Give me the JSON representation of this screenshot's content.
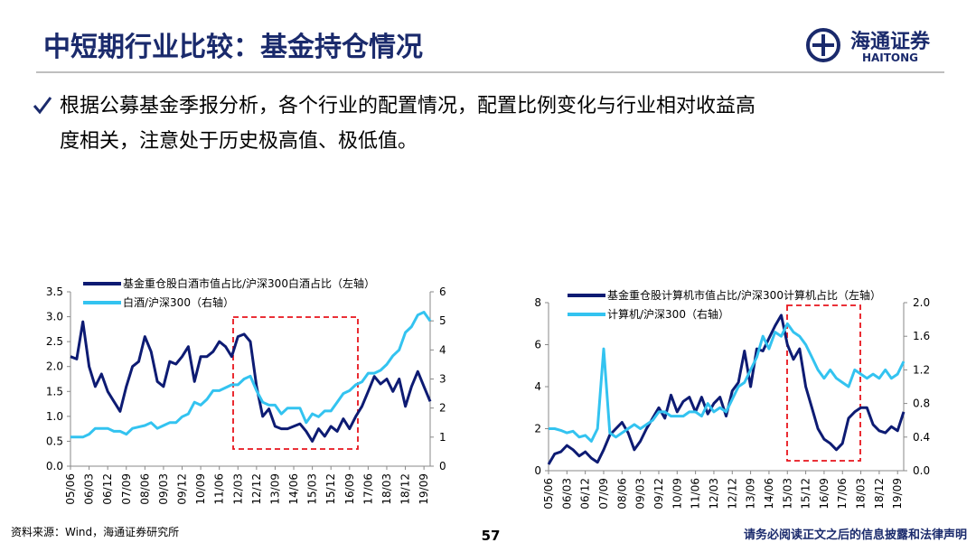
{
  "header": {
    "title": "中短期行业比较：基金持仓情况",
    "logo_cn": "海通证券",
    "logo_en": "HAITONG"
  },
  "bullet": [
    "根据公募基金季报分析，各个行业的配置情况，配置比例变化与行业相对收益高",
    "度相关，注意处于历史极高值、极低值。"
  ],
  "footer": {
    "source": "资料来源：Wind，海通证券研究所",
    "page": "57",
    "disclaimer": "请务必阅读正文之后的信息披露和法律声明"
  },
  "chart_data": [
    {
      "type": "line",
      "categories": [
        "05/06",
        null,
        null,
        "06/03",
        null,
        null,
        "06/12",
        null,
        null,
        "07/09",
        null,
        null,
        "08/06",
        null,
        null,
        "09/03",
        null,
        null,
        "09/12",
        null,
        null,
        "10/09",
        null,
        null,
        "11/06",
        null,
        null,
        "12/03",
        null,
        null,
        "12/12",
        null,
        null,
        "13/09",
        null,
        null,
        "14/06",
        null,
        null,
        "15/03",
        null,
        null,
        "15/12",
        null,
        null,
        "16/09",
        null,
        null,
        "17/06",
        null,
        null,
        "18/03",
        null,
        null,
        "18/12",
        null,
        null,
        "19/09",
        null
      ],
      "ylim": [
        0,
        3.5
      ],
      "yticks": [
        {
          "value": 0,
          "label": "0.0"
        },
        0.5,
        {
          "value": 1,
          "label": "1.0"
        },
        1.5,
        {
          "value": 2,
          "label": "2.0"
        },
        2.5,
        {
          "value": 3,
          "label": "3.0"
        },
        3.5
      ],
      "y2lim": [
        0,
        6
      ],
      "y2ticks": [
        0,
        1,
        2,
        3,
        4,
        5,
        6
      ],
      "grid": false,
      "series": [
        {
          "name": "基金重仓股白酒市值占比/沪深300白酒占比（左轴）",
          "color": "#0d1b73",
          "values": [
            2.2,
            2.15,
            2.9,
            2.0,
            1.6,
            1.85,
            1.5,
            1.3,
            1.1,
            1.6,
            2.0,
            2.1,
            2.6,
            2.3,
            1.7,
            1.6,
            2.1,
            2.05,
            2.2,
            2.4,
            1.7,
            2.2,
            2.2,
            2.3,
            2.5,
            2.4,
            2.2,
            2.6,
            2.65,
            2.5,
            1.6,
            1.0,
            1.15,
            0.8,
            0.75,
            0.75,
            0.8,
            0.85,
            0.7,
            0.5,
            0.75,
            0.6,
            0.8,
            0.7,
            0.95,
            0.75,
            1.0,
            1.2,
            1.5,
            1.8,
            1.65,
            1.75,
            1.5,
            1.75,
            1.2,
            1.6,
            1.9,
            1.6,
            1.3
          ]
        },
        {
          "name": "白酒/沪深300（右轴）",
          "color": "#33c3f0",
          "axis": "y2",
          "values": [
            1.0,
            1.0,
            1.0,
            1.1,
            1.3,
            1.3,
            1.3,
            1.2,
            1.2,
            1.1,
            1.3,
            1.35,
            1.4,
            1.5,
            1.3,
            1.4,
            1.5,
            1.5,
            1.7,
            1.8,
            2.2,
            2.1,
            2.3,
            2.6,
            2.6,
            2.7,
            2.8,
            2.8,
            3.0,
            3.1,
            2.6,
            2.2,
            2.1,
            2.1,
            1.8,
            2.0,
            2.0,
            2.0,
            1.5,
            1.8,
            1.7,
            1.9,
            1.9,
            2.2,
            2.5,
            2.6,
            2.8,
            2.9,
            3.2,
            3.2,
            3.3,
            3.5,
            3.8,
            4.0,
            4.6,
            4.8,
            5.2,
            5.3,
            5.0
          ]
        }
      ]
    },
    {
      "type": "line",
      "categories": [
        "05/06",
        null,
        null,
        "06/03",
        null,
        null,
        "06/12",
        null,
        null,
        "07/09",
        null,
        null,
        "08/06",
        null,
        null,
        "09/03",
        null,
        null,
        "09/12",
        null,
        null,
        "10/09",
        null,
        null,
        "11/06",
        null,
        null,
        "12/03",
        null,
        null,
        "12/12",
        null,
        null,
        "13/09",
        null,
        null,
        "14/06",
        null,
        null,
        "15/03",
        null,
        null,
        "15/12",
        null,
        null,
        "16/09",
        null,
        null,
        "17/06",
        null,
        null,
        "18/03",
        null,
        null,
        "18/12",
        null,
        null,
        "19/09",
        null
      ],
      "ylim": [
        0,
        8
      ],
      "yticks": [
        0,
        2,
        4,
        6,
        8
      ],
      "y2lim": [
        0,
        2
      ],
      "y2ticks": [
        {
          "value": 0,
          "label": "0.0"
        },
        0.4,
        0.8,
        1.2,
        1.6,
        {
          "value": 2,
          "label": "2.0"
        }
      ],
      "grid": false,
      "series": [
        {
          "name": "基金重仓股计算机市值占比/沪深300计算机占比（左轴）",
          "color": "#0d1b73",
          "values": [
            0.3,
            0.8,
            0.9,
            1.2,
            1.0,
            0.7,
            0.9,
            0.6,
            0.4,
            1.0,
            1.7,
            2.0,
            2.3,
            1.8,
            1.0,
            1.4,
            2.0,
            2.5,
            3.0,
            2.5,
            3.6,
            2.8,
            3.3,
            3.5,
            2.8,
            3.5,
            2.7,
            3.2,
            3.5,
            2.6,
            3.8,
            4.2,
            5.7,
            4.0,
            5.8,
            5.7,
            6.3,
            6.9,
            7.4,
            6.0,
            5.3,
            5.8,
            4.0,
            3.0,
            2.0,
            1.5,
            1.3,
            1.0,
            1.3,
            2.5,
            2.8,
            3.0,
            3.0,
            2.2,
            1.9,
            1.8,
            2.1,
            1.9,
            2.8
          ]
        },
        {
          "name": "计算机/沪深300（右轴）",
          "color": "#33c3f0",
          "axis": "y2",
          "values": [
            0.5,
            0.5,
            0.48,
            0.45,
            0.47,
            0.4,
            0.42,
            0.35,
            0.5,
            1.45,
            0.45,
            0.4,
            0.45,
            0.5,
            0.55,
            0.5,
            0.55,
            0.6,
            0.7,
            0.7,
            0.65,
            0.65,
            0.65,
            0.7,
            0.7,
            0.65,
            0.8,
            0.7,
            0.75,
            0.7,
            0.85,
            1.0,
            1.05,
            1.2,
            1.35,
            1.6,
            1.45,
            1.65,
            1.6,
            1.75,
            1.65,
            1.6,
            1.5,
            1.35,
            1.2,
            1.1,
            1.2,
            1.1,
            1.05,
            1.0,
            1.2,
            1.15,
            1.1,
            1.15,
            1.1,
            1.2,
            1.1,
            1.15,
            1.3
          ]
        }
      ]
    }
  ]
}
